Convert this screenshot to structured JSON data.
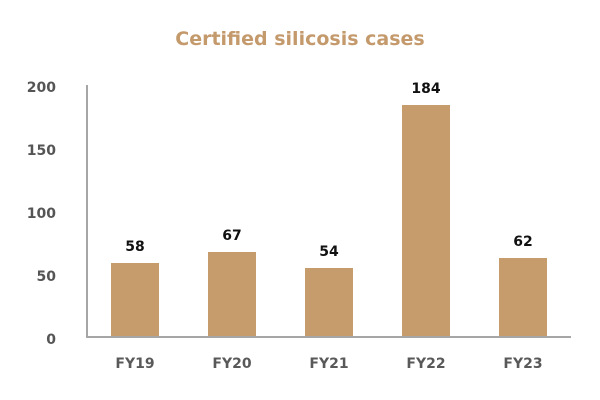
{
  "chart_data": {
    "type": "bar",
    "title": "Certified silicosis cases",
    "categories": [
      "FY19",
      "FY20",
      "FY21",
      "FY22",
      "FY23"
    ],
    "values": [
      58,
      67,
      54,
      184,
      62
    ],
    "xlabel": "",
    "ylabel": "",
    "ylim": [
      0,
      200
    ],
    "yticks": [
      0,
      50,
      100,
      150,
      200
    ],
    "grid": false,
    "legend": null,
    "data_labels": true
  },
  "colors": {
    "bar": "#c69c6d",
    "title": "#c49a6c",
    "axis": "#a6a6a6"
  }
}
